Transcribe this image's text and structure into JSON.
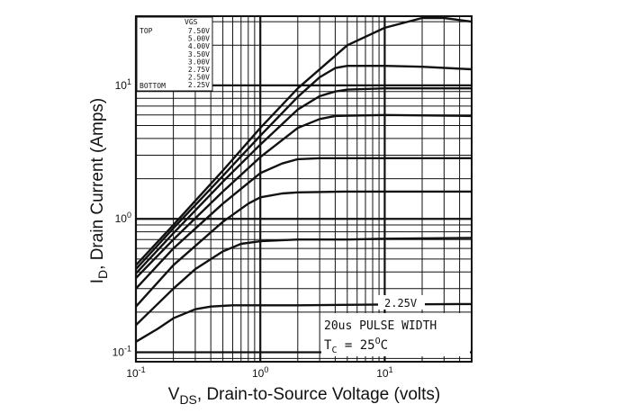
{
  "chart_data": {
    "type": "line",
    "title": "",
    "xlabel": {
      "main": "V",
      "sub": "DS",
      "rest": ", Drain-to-Source Voltage (volts)"
    },
    "ylabel": {
      "main": "I",
      "sub": "D",
      "rest": ", Drain Current (Amps)"
    },
    "x_scale": "log",
    "y_scale": "log",
    "xlim": [
      0.1,
      50
    ],
    "ylim": [
      0.085,
      33
    ],
    "grid": true,
    "x_ticks": [
      {
        "value": 0.1,
        "base": "10",
        "exp": "-1"
      },
      {
        "value": 1,
        "base": "10",
        "exp": "0"
      },
      {
        "value": 10,
        "base": "10",
        "exp": "1"
      }
    ],
    "y_ticks": [
      {
        "value": 0.1,
        "base": "10",
        "exp": "-1"
      },
      {
        "value": 1,
        "base": "10",
        "exp": "0"
      },
      {
        "value": 10,
        "base": "10",
        "exp": "1"
      }
    ],
    "legend": {
      "position": "top-left",
      "header": "VGS",
      "top_label": "TOP",
      "bottom_label": "BOTTOM",
      "entries": [
        "7.50V",
        "5.00V",
        "4.00V",
        "3.50V",
        "3.00V",
        "2.75V",
        "2.50V",
        "2.25V"
      ]
    },
    "annotations": {
      "curve_label": "2.25V",
      "pulse": "20us PULSE WIDTH",
      "tc_main": "T",
      "tc_sub": "C",
      "tc_rest": " = 25",
      "tc_sup": "O",
      "tc_unit": "C"
    },
    "series": [
      {
        "x": [
          0.1,
          0.2,
          0.5,
          1,
          2,
          5,
          10,
          20,
          30,
          50
        ],
        "y": [
          0.45,
          0.9,
          2.3,
          4.8,
          9.5,
          20,
          27,
          32,
          32,
          30
        ]
      },
      {
        "x": [
          0.1,
          0.2,
          0.5,
          1,
          2,
          3,
          4,
          5,
          10,
          20,
          50
        ],
        "y": [
          0.42,
          0.85,
          2.1,
          4.2,
          8.2,
          11.5,
          13.5,
          14,
          14,
          13.8,
          13.2
        ]
      },
      {
        "x": [
          0.1,
          0.2,
          0.5,
          1,
          2,
          3,
          4,
          5,
          10,
          50
        ],
        "y": [
          0.39,
          0.78,
          1.9,
          3.6,
          6.6,
          8.3,
          9,
          9.3,
          9.5,
          9.5
        ]
      },
      {
        "x": [
          0.1,
          0.2,
          0.5,
          1,
          2,
          3,
          4,
          10,
          50
        ],
        "y": [
          0.36,
          0.7,
          1.6,
          2.9,
          4.8,
          5.6,
          5.9,
          6,
          5.9
        ]
      },
      {
        "x": [
          0.1,
          0.2,
          0.5,
          1,
          1.5,
          2,
          3,
          10,
          50
        ],
        "y": [
          0.3,
          0.6,
          1.3,
          2.2,
          2.6,
          2.8,
          2.85,
          2.85,
          2.85
        ]
      },
      {
        "x": [
          0.1,
          0.2,
          0.5,
          0.8,
          1,
          1.5,
          2,
          5,
          10,
          50
        ],
        "y": [
          0.22,
          0.45,
          0.95,
          1.3,
          1.45,
          1.55,
          1.58,
          1.6,
          1.6,
          1.6
        ]
      },
      {
        "x": [
          0.1,
          0.2,
          0.3,
          0.5,
          0.7,
          1,
          2,
          5,
          10,
          50
        ],
        "y": [
          0.16,
          0.3,
          0.42,
          0.57,
          0.65,
          0.68,
          0.7,
          0.7,
          0.71,
          0.72
        ]
      },
      {
        "x": [
          0.1,
          0.15,
          0.2,
          0.3,
          0.4,
          0.6,
          1,
          2,
          10,
          50
        ],
        "y": [
          0.12,
          0.15,
          0.18,
          0.21,
          0.22,
          0.225,
          0.225,
          0.225,
          0.228,
          0.23
        ]
      }
    ]
  }
}
